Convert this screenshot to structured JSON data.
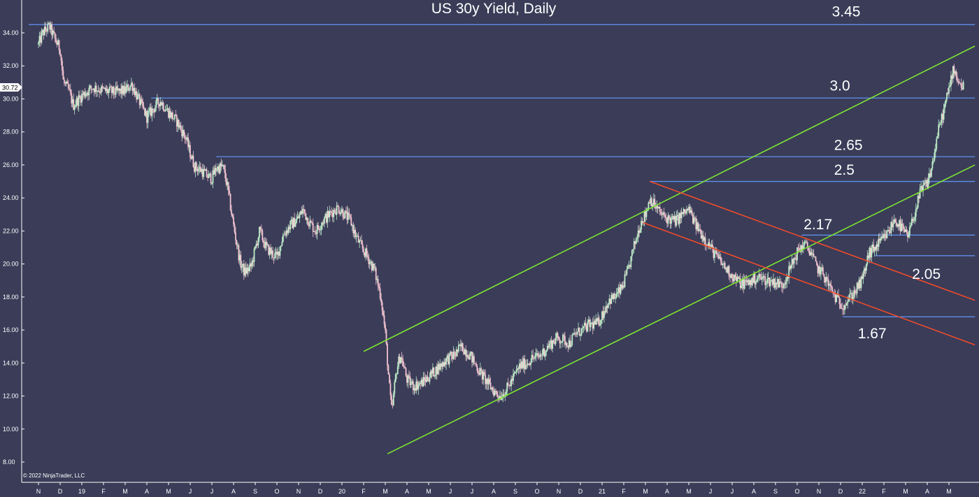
{
  "chart_data": {
    "type": "candlestick",
    "title": "US 30y Yield, Daily",
    "copyright": "© 2022 NinjaTrader, LLC",
    "colors": {
      "background": "#3a3c58",
      "level_line": "#5f8fe8",
      "channel_line": "#7de332",
      "down_channel_line": "#ee4b2b",
      "candle_up": "#bfeec9",
      "candle_down": "#f2c3cf",
      "axis": "#ffffff",
      "badge": "#ffffff"
    },
    "y_axis": {
      "ylim": [
        7.4,
        35.6
      ],
      "ticks": [
        "8.00",
        "10.00",
        "12.00",
        "14.00",
        "16.00",
        "18.00",
        "20.00",
        "22.00",
        "24.00",
        "26.00",
        "28.00",
        "30.00",
        "32.00",
        "34.00"
      ],
      "last_price_badge": "30.72"
    },
    "x_axis": {
      "months": [
        {
          "label": "N",
          "i": 0
        },
        {
          "label": "D",
          "i": 1
        },
        {
          "label": "19",
          "i": 2
        },
        {
          "label": "F",
          "i": 3
        },
        {
          "label": "M",
          "i": 4
        },
        {
          "label": "A",
          "i": 5
        },
        {
          "label": "M",
          "i": 6
        },
        {
          "label": "J",
          "i": 7
        },
        {
          "label": "J",
          "i": 8
        },
        {
          "label": "A",
          "i": 9
        },
        {
          "label": "S",
          "i": 10
        },
        {
          "label": "O",
          "i": 11
        },
        {
          "label": "N",
          "i": 12
        },
        {
          "label": "D",
          "i": 13
        },
        {
          "label": "20",
          "i": 14
        },
        {
          "label": "F",
          "i": 15
        },
        {
          "label": "M",
          "i": 16
        },
        {
          "label": "A",
          "i": 17
        },
        {
          "label": "M",
          "i": 18
        },
        {
          "label": "J",
          "i": 19
        },
        {
          "label": "J",
          "i": 20
        },
        {
          "label": "A",
          "i": 21
        },
        {
          "label": "S",
          "i": 22
        },
        {
          "label": "O",
          "i": 23
        },
        {
          "label": "N",
          "i": 24
        },
        {
          "label": "D",
          "i": 25
        },
        {
          "label": "21",
          "i": 26
        },
        {
          "label": "F",
          "i": 27
        },
        {
          "label": "M",
          "i": 28
        },
        {
          "label": "A",
          "i": 29
        },
        {
          "label": "M",
          "i": 30
        },
        {
          "label": "J",
          "i": 31
        },
        {
          "label": "J",
          "i": 32
        },
        {
          "label": "A",
          "i": 33
        },
        {
          "label": "S",
          "i": 34
        },
        {
          "label": "O",
          "i": 35
        },
        {
          "label": "N",
          "i": 36
        },
        {
          "label": "D",
          "i": 37
        },
        {
          "label": "22",
          "i": 38
        },
        {
          "label": "F",
          "i": 39
        },
        {
          "label": "M",
          "i": 40
        },
        {
          "label": "A",
          "i": 41
        },
        {
          "label": "M",
          "i": 42
        }
      ]
    },
    "price_path": [
      [
        0,
        33.3
      ],
      [
        0.2,
        34.0
      ],
      [
        0.5,
        34.4
      ],
      [
        0.8,
        33.5
      ],
      [
        1.0,
        33.0
      ],
      [
        1.15,
        31.0
      ],
      [
        1.4,
        30.5
      ],
      [
        1.6,
        29.6
      ],
      [
        2.0,
        30.2
      ],
      [
        2.5,
        30.7
      ],
      [
        3.0,
        30.5
      ],
      [
        3.5,
        30.4
      ],
      [
        4.0,
        30.5
      ],
      [
        4.3,
        30.9
      ],
      [
        4.6,
        30.0
      ],
      [
        5.0,
        28.9
      ],
      [
        5.3,
        29.4
      ],
      [
        5.6,
        29.9
      ],
      [
        6.0,
        29.2
      ],
      [
        6.4,
        28.6
      ],
      [
        6.8,
        27.6
      ],
      [
        7.0,
        26.7
      ],
      [
        7.2,
        25.9
      ],
      [
        7.5,
        25.7
      ],
      [
        7.8,
        25.3
      ],
      [
        8.0,
        25.2
      ],
      [
        8.2,
        25.8
      ],
      [
        8.5,
        25.9
      ],
      [
        8.7,
        24.8
      ],
      [
        9.0,
        22.3
      ],
      [
        9.3,
        20.1
      ],
      [
        9.5,
        19.5
      ],
      [
        9.8,
        19.8
      ],
      [
        10.2,
        22.0
      ],
      [
        10.5,
        21.0
      ],
      [
        10.8,
        20.6
      ],
      [
        11.0,
        20.4
      ],
      [
        11.3,
        21.8
      ],
      [
        11.6,
        22.3
      ],
      [
        12.0,
        22.8
      ],
      [
        12.2,
        23.3
      ],
      [
        12.5,
        22.5
      ],
      [
        12.8,
        22.0
      ],
      [
        13.1,
        22.6
      ],
      [
        13.5,
        23.1
      ],
      [
        13.8,
        23.4
      ],
      [
        14.0,
        23.2
      ],
      [
        14.4,
        22.6
      ],
      [
        14.6,
        21.8
      ],
      [
        14.9,
        21.0
      ],
      [
        15.2,
        20.4
      ],
      [
        15.5,
        19.6
      ],
      [
        15.8,
        18.0
      ],
      [
        16.0,
        15.8
      ],
      [
        16.2,
        12.3
      ],
      [
        16.3,
        11.0
      ],
      [
        16.5,
        13.5
      ],
      [
        16.7,
        14.5
      ],
      [
        17.0,
        13.0
      ],
      [
        17.3,
        12.6
      ],
      [
        17.7,
        12.8
      ],
      [
        18.1,
        13.3
      ],
      [
        18.5,
        13.8
      ],
      [
        18.8,
        14.2
      ],
      [
        19.2,
        14.5
      ],
      [
        19.5,
        15.0
      ],
      [
        19.9,
        14.5
      ],
      [
        20.2,
        13.8
      ],
      [
        20.6,
        13.0
      ],
      [
        21.0,
        12.3
      ],
      [
        21.3,
        12.0
      ],
      [
        21.6,
        12.4
      ],
      [
        21.9,
        13.1
      ],
      [
        22.2,
        13.8
      ],
      [
        22.5,
        14.0
      ],
      [
        22.8,
        14.3
      ],
      [
        23.1,
        14.4
      ],
      [
        23.5,
        15.0
      ],
      [
        23.9,
        15.5
      ],
      [
        24.2,
        15.4
      ],
      [
        24.5,
        15.2
      ],
      [
        24.8,
        15.8
      ],
      [
        25.1,
        16.0
      ],
      [
        25.4,
        16.3
      ],
      [
        25.8,
        16.4
      ],
      [
        26.0,
        16.9
      ],
      [
        26.3,
        17.8
      ],
      [
        26.6,
        18.0
      ],
      [
        26.9,
        18.5
      ],
      [
        27.2,
        19.6
      ],
      [
        27.5,
        21.2
      ],
      [
        27.8,
        22.6
      ],
      [
        28.0,
        23.0
      ],
      [
        28.2,
        24.0
      ],
      [
        28.5,
        23.4
      ],
      [
        28.8,
        22.9
      ],
      [
        29.1,
        22.7
      ],
      [
        29.4,
        22.6
      ],
      [
        29.7,
        23.0
      ],
      [
        30.0,
        23.3
      ],
      [
        30.3,
        22.4
      ],
      [
        30.6,
        21.8
      ],
      [
        30.9,
        21.2
      ],
      [
        31.2,
        20.6
      ],
      [
        31.6,
        19.9
      ],
      [
        32.0,
        19.3
      ],
      [
        32.4,
        18.8
      ],
      [
        32.8,
        18.9
      ],
      [
        33.2,
        19.2
      ],
      [
        33.6,
        19.0
      ],
      [
        34.0,
        18.9
      ],
      [
        34.3,
        18.7
      ],
      [
        34.6,
        19.5
      ],
      [
        35.0,
        20.7
      ],
      [
        35.3,
        21.2
      ],
      [
        35.6,
        20.8
      ],
      [
        35.9,
        19.8
      ],
      [
        36.2,
        19.4
      ],
      [
        36.5,
        18.6
      ],
      [
        36.8,
        17.9
      ],
      [
        37.1,
        17.5
      ],
      [
        37.4,
        17.9
      ],
      [
        37.7,
        18.4
      ],
      [
        38.0,
        19.0
      ],
      [
        38.3,
        20.6
      ],
      [
        38.6,
        21.0
      ],
      [
        38.9,
        21.4
      ],
      [
        39.2,
        21.9
      ],
      [
        39.5,
        22.7
      ],
      [
        39.8,
        22.2
      ],
      [
        40.1,
        21.6
      ],
      [
        40.4,
        23.0
      ],
      [
        40.7,
        24.4
      ],
      [
        41.0,
        24.9
      ],
      [
        41.2,
        25.8
      ],
      [
        41.5,
        28.0
      ],
      [
        41.8,
        29.5
      ],
      [
        42.0,
        30.6
      ],
      [
        42.2,
        31.9
      ],
      [
        42.5,
        30.9
      ],
      [
        42.7,
        30.7
      ]
    ],
    "horizontal_levels": [
      {
        "label": "3.45",
        "y": 34.5,
        "x_start": -0.45,
        "x_end": 43.2,
        "label_x": 36.6,
        "label_y": 35.0
      },
      {
        "label": "3.0",
        "y": 30.05,
        "x_start": 5.2,
        "x_end": 43.2,
        "label_x": 36.5,
        "label_y": 30.5
      },
      {
        "label": "2.65",
        "y": 26.5,
        "x_start": 8.2,
        "x_end": 43.2,
        "label_x": 36.7,
        "label_y": 26.9
      },
      {
        "label": "2.5",
        "y": 25.0,
        "x_start": 28.2,
        "x_end": 43.2,
        "label_x": 36.7,
        "label_y": 25.4
      },
      {
        "label": "2.17",
        "y": 21.75,
        "x_start": 35.2,
        "x_end": 43.2,
        "label_x": 35.3,
        "label_y": 22.1
      },
      {
        "label": "2.05",
        "y": 20.5,
        "x_start": 38.6,
        "x_end": 43.2,
        "label_x": 40.3,
        "label_y": 19.1
      },
      {
        "label": "1.67",
        "y": 16.8,
        "x_start": 37.1,
        "x_end": 43.2,
        "label_x": 37.8,
        "label_y": 15.5
      }
    ],
    "trend_lines": [
      {
        "name": "upper-channel",
        "color": "green",
        "x1": 15.0,
        "y1": 14.7,
        "x2": 43.2,
        "y2": 33.2
      },
      {
        "name": "lower-channel",
        "color": "green",
        "x1": 16.1,
        "y1": 8.5,
        "x2": 43.2,
        "y2": 26.0
      },
      {
        "name": "upper-down-channel",
        "color": "red",
        "x1": 28.2,
        "y1": 25.0,
        "x2": 43.2,
        "y2": 17.8
      },
      {
        "name": "lower-down-channel",
        "color": "red",
        "x1": 27.9,
        "y1": 22.5,
        "x2": 43.2,
        "y2": 15.1
      }
    ]
  }
}
